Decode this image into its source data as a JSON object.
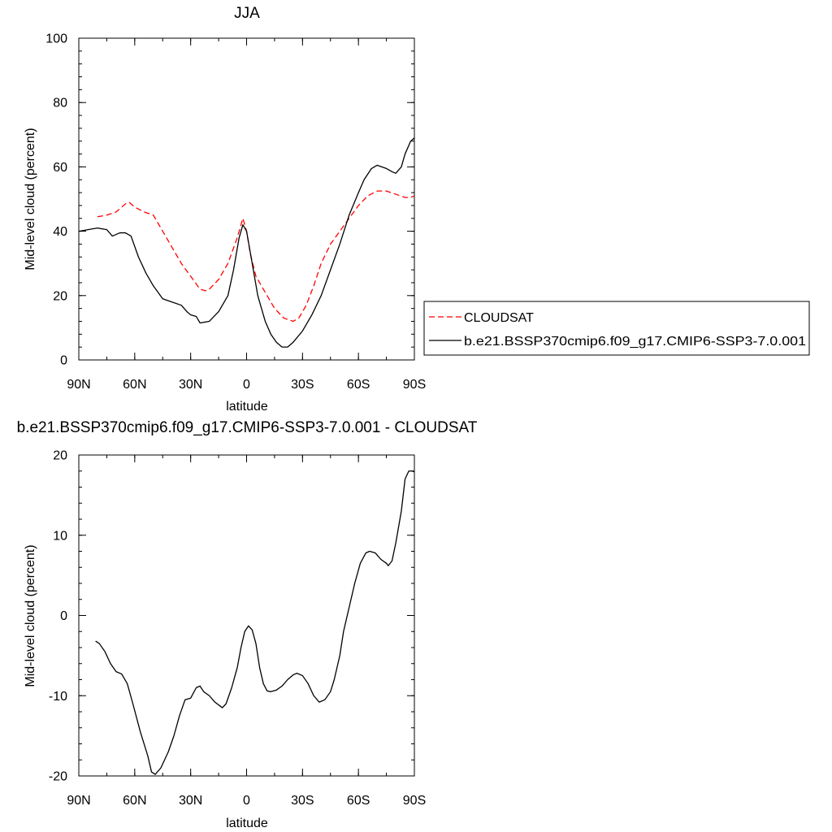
{
  "chart_data": [
    {
      "type": "line",
      "title": "JJA",
      "xlabel": "latitude",
      "ylabel": "Mid-level cloud (percent)",
      "xlim": [
        90,
        -90
      ],
      "ylim": [
        0,
        100
      ],
      "x_ticks": [
        {
          "value": 90,
          "label": "90N"
        },
        {
          "value": 60,
          "label": "60N"
        },
        {
          "value": 30,
          "label": "30N"
        },
        {
          "value": 0,
          "label": "0"
        },
        {
          "value": -30,
          "label": "30S"
        },
        {
          "value": -60,
          "label": "60S"
        },
        {
          "value": -90,
          "label": "90S"
        }
      ],
      "y_ticks": [
        {
          "value": 0,
          "label": "0"
        },
        {
          "value": 20,
          "label": "20"
        },
        {
          "value": 40,
          "label": "40"
        },
        {
          "value": 60,
          "label": "60"
        },
        {
          "value": 80,
          "label": "80"
        },
        {
          "value": 100,
          "label": "100"
        }
      ],
      "legend": {
        "placement": "right"
      },
      "series": [
        {
          "name": "CLOUDSAT",
          "color": "#ff0000",
          "dash": true,
          "points": [
            [
              80,
              44.5
            ],
            [
              75,
              45
            ],
            [
              70,
              46
            ],
            [
              65,
              48.5
            ],
            [
              63,
              49
            ],
            [
              60,
              47.5
            ],
            [
              55,
              46
            ],
            [
              50,
              45
            ],
            [
              45,
              40
            ],
            [
              40,
              35
            ],
            [
              35,
              30
            ],
            [
              30,
              26
            ],
            [
              25,
              22
            ],
            [
              22,
              21.5
            ],
            [
              20,
              22
            ],
            [
              15,
              25
            ],
            [
              10,
              30
            ],
            [
              5,
              38
            ],
            [
              2,
              44
            ],
            [
              0,
              40
            ],
            [
              -2,
              33
            ],
            [
              -5,
              26
            ],
            [
              -10,
              21
            ],
            [
              -15,
              16
            ],
            [
              -20,
              13
            ],
            [
              -25,
              12
            ],
            [
              -28,
              13
            ],
            [
              -32,
              17
            ],
            [
              -36,
              23
            ],
            [
              -40,
              30
            ],
            [
              -45,
              36
            ],
            [
              -50,
              40
            ],
            [
              -55,
              44
            ],
            [
              -60,
              48
            ],
            [
              -65,
              51
            ],
            [
              -70,
              52.5
            ],
            [
              -75,
              52.5
            ],
            [
              -80,
              51.5
            ],
            [
              -85,
              50.5
            ],
            [
              -88,
              50.5
            ],
            [
              -90,
              51
            ],
            [
              -92,
              49
            ]
          ]
        },
        {
          "name": "b.e21.BSSP370cmip6.f09_g17.CMIP6-SSP3-7.0.001",
          "color": "#000000",
          "dash": false,
          "points": [
            [
              90,
              40
            ],
            [
              85,
              40.5
            ],
            [
              80,
              41
            ],
            [
              75,
              40.5
            ],
            [
              72,
              38.5
            ],
            [
              68,
              39.5
            ],
            [
              65,
              39.5
            ],
            [
              62,
              38.5
            ],
            [
              58,
              32
            ],
            [
              54,
              27
            ],
            [
              50,
              23
            ],
            [
              45,
              19
            ],
            [
              40,
              18
            ],
            [
              35,
              17
            ],
            [
              32,
              15
            ],
            [
              30,
              14
            ],
            [
              27,
              13.5
            ],
            [
              25,
              11.5
            ],
            [
              20,
              12
            ],
            [
              15,
              15
            ],
            [
              10,
              20
            ],
            [
              7,
              28
            ],
            [
              4,
              38
            ],
            [
              2,
              42
            ],
            [
              0,
              40
            ],
            [
              -3,
              30
            ],
            [
              -6,
              20
            ],
            [
              -10,
              12
            ],
            [
              -13,
              8
            ],
            [
              -16,
              5.5
            ],
            [
              -19,
              4
            ],
            [
              -22,
              4
            ],
            [
              -25,
              5.5
            ],
            [
              -30,
              9
            ],
            [
              -35,
              14
            ],
            [
              -40,
              20
            ],
            [
              -45,
              28
            ],
            [
              -50,
              36
            ],
            [
              -55,
              45
            ],
            [
              -60,
              52
            ],
            [
              -63,
              56
            ],
            [
              -67,
              59.5
            ],
            [
              -70,
              60.5
            ],
            [
              -75,
              59.5
            ],
            [
              -78,
              58.5
            ],
            [
              -80,
              58
            ],
            [
              -83,
              60
            ],
            [
              -85,
              64
            ],
            [
              -88,
              68
            ],
            [
              -90,
              69
            ],
            [
              -92,
              68
            ],
            [
              -94,
              67
            ],
            [
              -95,
              66.5
            ],
            [
              -97,
              70
            ],
            [
              -100,
              80
            ],
            [
              -102,
              87
            ]
          ]
        }
      ]
    },
    {
      "type": "line",
      "title": "b.e21.BSSP370cmip6.f09_g17.CMIP6-SSP3-7.0.001 - CLOUDSAT",
      "xlabel": "latitude",
      "ylabel": "Mid-level cloud (percent)",
      "xlim": [
        90,
        -90
      ],
      "ylim": [
        -20,
        20
      ],
      "x_ticks": [
        {
          "value": 90,
          "label": "90N"
        },
        {
          "value": 60,
          "label": "60N"
        },
        {
          "value": 30,
          "label": "30N"
        },
        {
          "value": 0,
          "label": "0"
        },
        {
          "value": -30,
          "label": "30S"
        },
        {
          "value": -60,
          "label": "60S"
        },
        {
          "value": -90,
          "label": "90S"
        }
      ],
      "y_ticks": [
        {
          "value": -20,
          "label": "-20"
        },
        {
          "value": -10,
          "label": "-10"
        },
        {
          "value": 0,
          "label": "0"
        },
        {
          "value": 10,
          "label": "10"
        },
        {
          "value": 20,
          "label": "20"
        }
      ],
      "series": [
        {
          "color": "#000000",
          "dash": false,
          "points": [
            [
              81,
              -3.2
            ],
            [
              79,
              -3.5
            ],
            [
              76,
              -4.5
            ],
            [
              73,
              -6
            ],
            [
              70,
              -7
            ],
            [
              67,
              -7.3
            ],
            [
              64,
              -8.5
            ],
            [
              61,
              -11
            ],
            [
              57,
              -14.5
            ],
            [
              53,
              -17.5
            ],
            [
              51,
              -19.5
            ],
            [
              49,
              -19.8
            ],
            [
              46,
              -19
            ],
            [
              42,
              -17
            ],
            [
              39,
              -15
            ],
            [
              36,
              -12.5
            ],
            [
              33,
              -10.5
            ],
            [
              30,
              -10.3
            ],
            [
              27,
              -9
            ],
            [
              25,
              -8.8
            ],
            [
              23,
              -9.5
            ],
            [
              20,
              -10
            ],
            [
              17,
              -10.8
            ],
            [
              13,
              -11.5
            ],
            [
              11,
              -11
            ],
            [
              8,
              -9
            ],
            [
              5,
              -6.5
            ],
            [
              3,
              -4
            ],
            [
              1,
              -2
            ],
            [
              -1,
              -1.3
            ],
            [
              -3,
              -1.8
            ],
            [
              -5,
              -3.5
            ],
            [
              -7,
              -6.5
            ],
            [
              -9,
              -8.5
            ],
            [
              -11,
              -9.4
            ],
            [
              -13,
              -9.5
            ],
            [
              -16,
              -9.3
            ],
            [
              -19,
              -8.8
            ],
            [
              -22,
              -8
            ],
            [
              -25,
              -7.4
            ],
            [
              -27,
              -7.2
            ],
            [
              -30,
              -7.5
            ],
            [
              -33,
              -8.5
            ],
            [
              -36,
              -10
            ],
            [
              -39,
              -10.8
            ],
            [
              -42,
              -10.5
            ],
            [
              -45,
              -9.5
            ],
            [
              -47,
              -8
            ],
            [
              -50,
              -5
            ],
            [
              -52,
              -2
            ],
            [
              -55,
              1
            ],
            [
              -58,
              4
            ],
            [
              -61,
              6.5
            ],
            [
              -64,
              7.8
            ],
            [
              -66,
              8
            ],
            [
              -69,
              7.8
            ],
            [
              -72,
              7
            ],
            [
              -75,
              6.5
            ],
            [
              -76,
              6.2
            ],
            [
              -78,
              6.8
            ],
            [
              -80,
              9
            ],
            [
              -83,
              13
            ],
            [
              -85,
              17
            ],
            [
              -87,
              18
            ],
            [
              -89,
              18
            ],
            [
              -91,
              17.8
            ]
          ]
        }
      ]
    }
  ]
}
